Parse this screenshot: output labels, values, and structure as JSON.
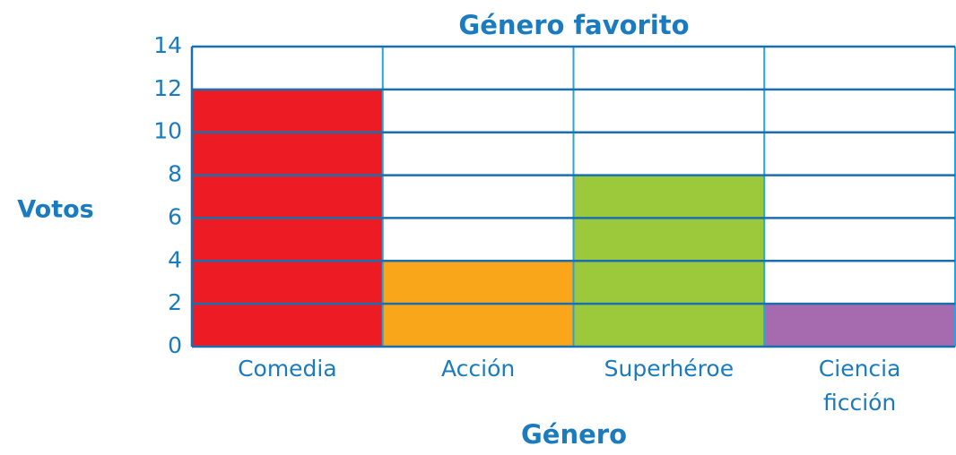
{
  "chart_data": {
    "type": "bar",
    "title": "Género favorito",
    "x_label": "Género",
    "y_label": "Votos",
    "categories": [
      "Comedia",
      "Acción",
      "Superhéroe",
      "Ciencia ficción"
    ],
    "values": [
      12,
      4,
      8,
      2
    ],
    "colors": [
      "#ed1c24",
      "#f9a61a",
      "#9bc93b",
      "#a66bae"
    ],
    "ylim": [
      0,
      14
    ],
    "yticks": [
      0,
      2,
      4,
      6,
      8,
      10,
      12,
      14
    ],
    "grid": true
  }
}
